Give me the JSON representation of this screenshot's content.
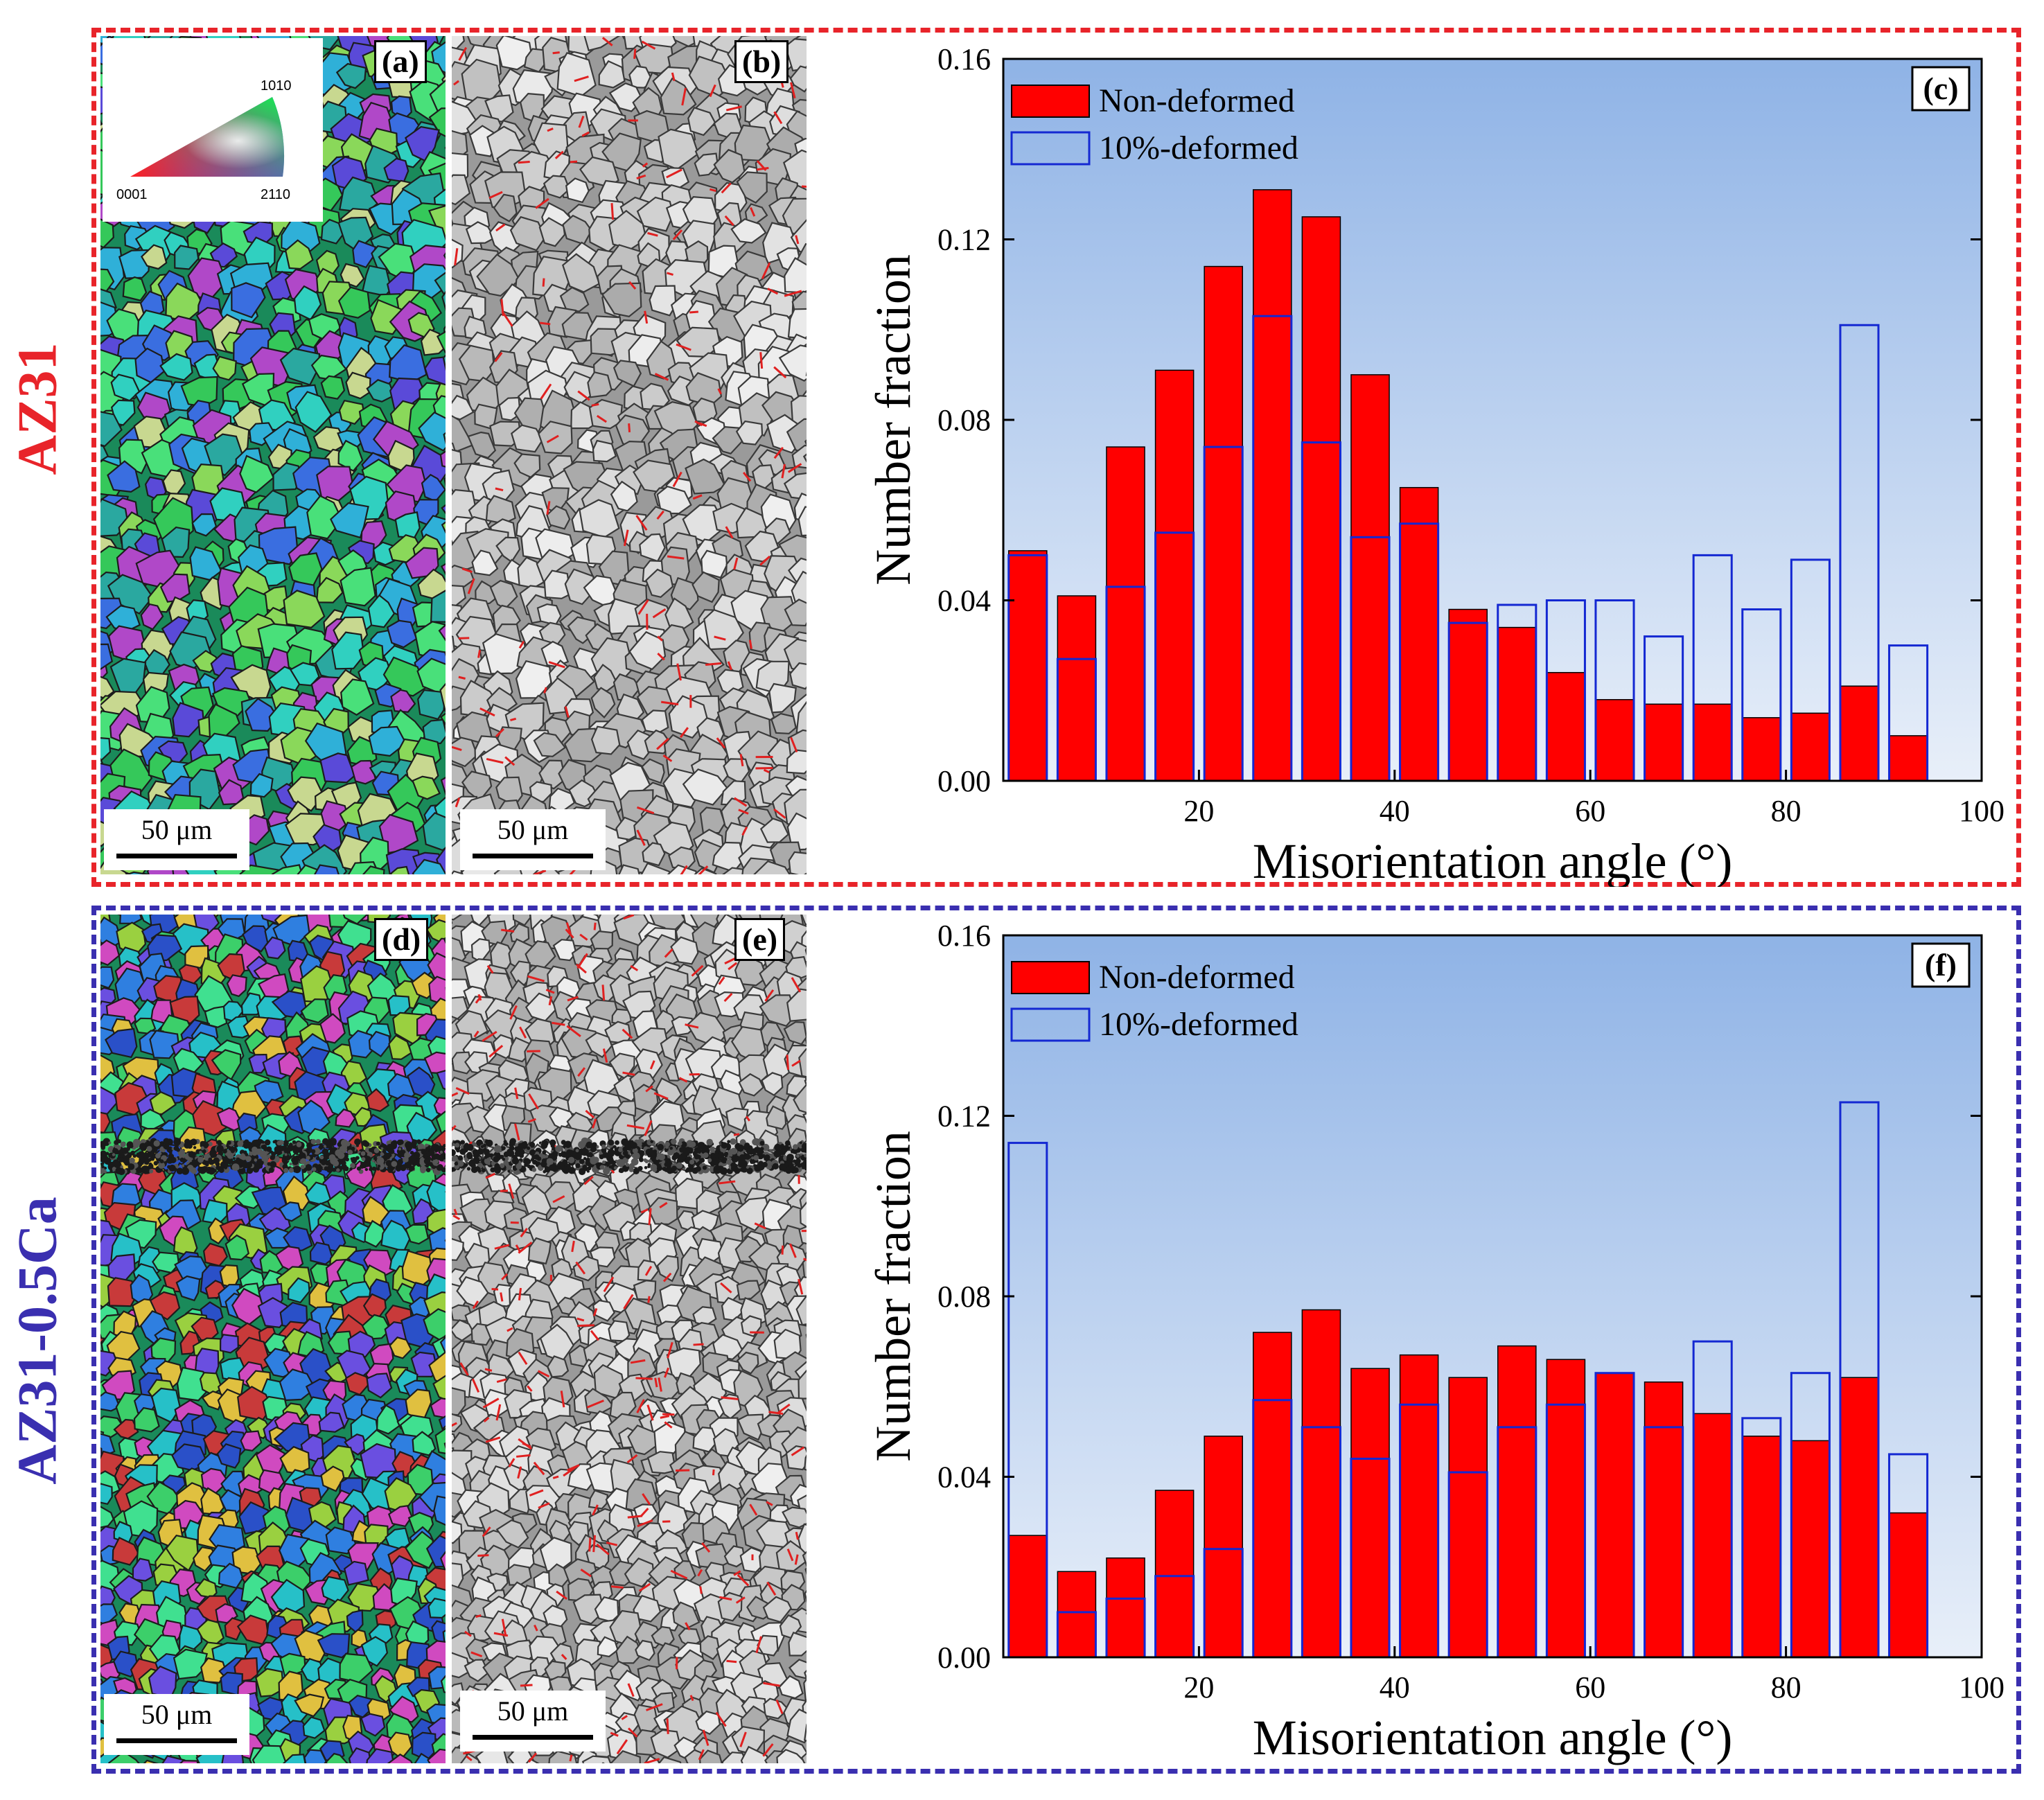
{
  "groups": {
    "top": {
      "label": "AZ31",
      "color": "#e8242a"
    },
    "bottom": {
      "label": "AZ31-0.5Ca",
      "color": "#3a2fb0"
    }
  },
  "panels": {
    "a": {
      "tag": "(a)",
      "scale": "50 μm",
      "kind": "ipf-map"
    },
    "b": {
      "tag": "(b)",
      "scale": "50 μm",
      "kind": "band-contrast-map"
    },
    "d": {
      "tag": "(d)",
      "scale": "50 μm",
      "kind": "ipf-map"
    },
    "e": {
      "tag": "(e)",
      "scale": "50 μm",
      "kind": "band-contrast-map"
    }
  },
  "ipf_key": {
    "corner_0001": "0001",
    "corner_2110": "2̅ 1̅ 1 0 → 2110",
    "corner_1010": "1010"
  },
  "ipf_key_labels": [
    "0001",
    "2110",
    "1010"
  ],
  "colors": {
    "non_deformed_fill": "#ff0000",
    "deformed_stroke": "#1428d2",
    "plot_bg_top": "#8fb3e6",
    "plot_bg_bottom": "#e8eff9"
  },
  "chart_data": [
    {
      "panel": "(c)",
      "type": "bar",
      "xlabel": "Misorientation angle (°)",
      "ylabel": "Number fraction",
      "xlim": [
        0,
        100
      ],
      "ylim": [
        0,
        0.16
      ],
      "xticks": [
        20,
        40,
        60,
        80,
        100
      ],
      "yticks": [
        "0.00",
        "0.04",
        "0.08",
        "0.12",
        "0.16"
      ],
      "legend_position": "top-left",
      "categories": [
        2.5,
        7.5,
        12.5,
        17.5,
        22.5,
        27.5,
        32.5,
        37.5,
        42.5,
        47.5,
        52.5,
        57.5,
        62.5,
        67.5,
        72.5,
        77.5,
        82.5,
        87.5,
        92.5
      ],
      "series": [
        {
          "name": "Non-deformed",
          "style": "filled",
          "values": [
            0.051,
            0.041,
            0.074,
            0.091,
            0.114,
            0.131,
            0.125,
            0.09,
            0.065,
            0.038,
            0.034,
            0.024,
            0.018,
            0.017,
            0.017,
            0.014,
            0.015,
            0.021,
            0.01
          ]
        },
        {
          "name": "10%-deformed",
          "style": "outline",
          "values": [
            0.05,
            0.027,
            0.043,
            0.055,
            0.074,
            0.103,
            0.075,
            0.054,
            0.057,
            0.035,
            0.039,
            0.04,
            0.04,
            0.032,
            0.05,
            0.038,
            0.049,
            0.101,
            0.03
          ]
        }
      ]
    },
    {
      "panel": "(f)",
      "type": "bar",
      "xlabel": "Misorientation angle (°)",
      "ylabel": "Number fraction",
      "xlim": [
        0,
        100
      ],
      "ylim": [
        0,
        0.16
      ],
      "xticks": [
        20,
        40,
        60,
        80,
        100
      ],
      "yticks": [
        "0.00",
        "0.04",
        "0.08",
        "0.12",
        "0.16"
      ],
      "legend_position": "top-left",
      "categories": [
        2.5,
        7.5,
        12.5,
        17.5,
        22.5,
        27.5,
        32.5,
        37.5,
        42.5,
        47.5,
        52.5,
        57.5,
        62.5,
        67.5,
        72.5,
        77.5,
        82.5,
        87.5,
        92.5
      ],
      "series": [
        {
          "name": "Non-deformed",
          "style": "filled",
          "values": [
            0.027,
            0.019,
            0.022,
            0.037,
            0.049,
            0.072,
            0.077,
            0.064,
            0.067,
            0.062,
            0.069,
            0.066,
            0.063,
            0.061,
            0.054,
            0.049,
            0.048,
            0.062,
            0.032
          ]
        },
        {
          "name": "10%-deformed",
          "style": "outline",
          "values": [
            0.114,
            0.01,
            0.013,
            0.018,
            0.024,
            0.057,
            0.051,
            0.044,
            0.056,
            0.041,
            0.051,
            0.056,
            0.063,
            0.051,
            0.07,
            0.053,
            0.063,
            0.123,
            0.045
          ]
        }
      ]
    }
  ]
}
